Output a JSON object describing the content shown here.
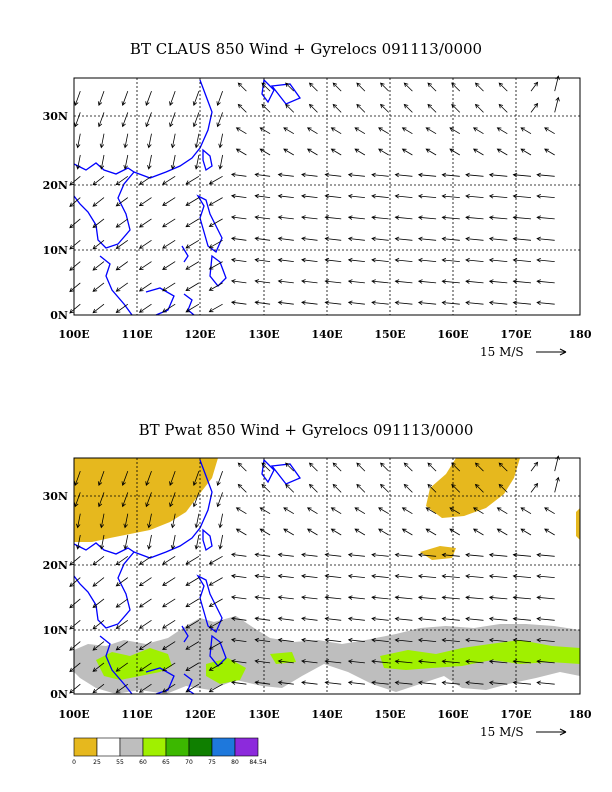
{
  "panel1": {
    "title": "BT CLAUS 850 Wind + Gyrelocs 091113/0000",
    "x_ticks": [
      "100E",
      "110E",
      "120E",
      "130E",
      "140E",
      "150E",
      "160E",
      "170E",
      "180"
    ],
    "y_ticks": [
      "0N",
      "10N",
      "20N",
      "30N"
    ],
    "vector_scale": "15 M/S"
  },
  "panel2": {
    "title": "BT Pwat 850 Wind + Gyrelocs 091113/0000",
    "x_ticks": [
      "100E",
      "110E",
      "120E",
      "130E",
      "140E",
      "150E",
      "160E",
      "170E",
      "180"
    ],
    "y_ticks": [
      "0N",
      "10N",
      "20N",
      "30N"
    ],
    "vector_scale": "15 M/S"
  },
  "colorbar": {
    "labels": [
      "0",
      "25",
      "55",
      "60",
      "65",
      "70",
      "75",
      "80",
      "84.54"
    ],
    "colors": [
      "#e6b81e",
      "#ffffff",
      "#bebebe",
      "#a0f000",
      "#3cb800",
      "#0f7f00",
      "#1e78dc",
      "#8c2adc"
    ]
  },
  "colors": {
    "coast": "#0000ff",
    "grid": "#000000"
  }
}
